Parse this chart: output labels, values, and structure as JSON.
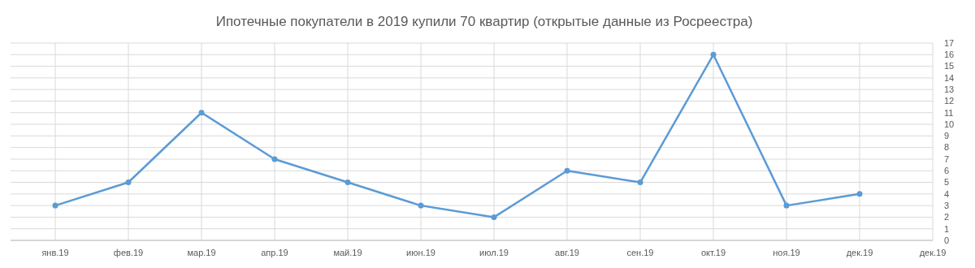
{
  "chart_data": {
    "type": "line",
    "title": "Ипотечные покупатели в 2019 купили 70 квартир (открытые данные из Росреестра)",
    "categories": [
      "янв.19",
      "фев.19",
      "мар.19",
      "апр.19",
      "май.19",
      "июн.19",
      "июл.19",
      "авг.19",
      "сен.19",
      "окт.19",
      "ноя.19",
      "дек.19",
      "дек.19"
    ],
    "series": [
      {
        "color": "#5b9bd5",
        "values": [
          3,
          5,
          11,
          7,
          5,
          3,
          2,
          6,
          5,
          16,
          3,
          4,
          null
        ]
      }
    ],
    "ylim": [
      0,
      17
    ],
    "yticks": [
      0,
      1,
      2,
      3,
      4,
      5,
      6,
      7,
      8,
      9,
      10,
      11,
      12,
      13,
      14,
      15,
      16,
      17
    ],
    "grid": true,
    "marker": "circle",
    "line_style": "solid"
  }
}
